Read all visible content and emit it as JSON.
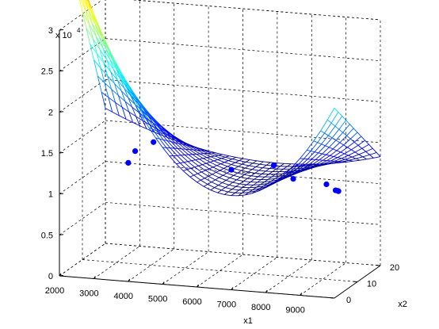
{
  "chart_data": {
    "type": "surface3d",
    "title": "",
    "xlabel": "x1",
    "ylabel": "x2",
    "zlabel": "",
    "z_multiplier": "x 10",
    "z_exponent": "4",
    "xlim": [
      2000,
      10000
    ],
    "ylim": [
      0,
      20
    ],
    "zlim": [
      0,
      30000
    ],
    "x_ticks": [
      "2000",
      "3000",
      "4000",
      "5000",
      "6000",
      "7000",
      "8000",
      "9000"
    ],
    "y_ticks": [
      "0",
      "10",
      "20"
    ],
    "z_ticks": [
      "0",
      "0.5",
      "1",
      "1.5",
      "2",
      "2.5",
      "3"
    ],
    "grid": true,
    "colormap": "jet",
    "surface": {
      "x_min": 2000,
      "x_max": 10000,
      "x_steps": 40,
      "y_min": 0,
      "y_max": 20,
      "y_steps": 12,
      "model": "z = a + b*(x-xc)^2 + c*(x-xc)^2*(yn-y)/yn",
      "xc": 7000,
      "a": 11500,
      "b": 0.0002,
      "c": 0.0011,
      "yn": 20
    },
    "points": [
      {
        "x": 2800,
        "y": 18,
        "z": 10500
      },
      {
        "x": 3000,
        "y": 18,
        "z": 12000
      },
      {
        "x": 3600,
        "y": 17,
        "z": 13500
      },
      {
        "x": 6200,
        "y": 12,
        "z": 12000
      },
      {
        "x": 7300,
        "y": 14,
        "z": 12500
      },
      {
        "x": 8000,
        "y": 12,
        "z": 11500
      },
      {
        "x": 9100,
        "y": 10,
        "z": 11600
      },
      {
        "x": 9500,
        "y": 8,
        "z": 11400
      },
      {
        "x": 9700,
        "y": 6,
        "z": 11800
      },
      {
        "x": 9850,
        "y": 4,
        "z": 12200
      }
    ],
    "marker_color": "#0000ff"
  }
}
